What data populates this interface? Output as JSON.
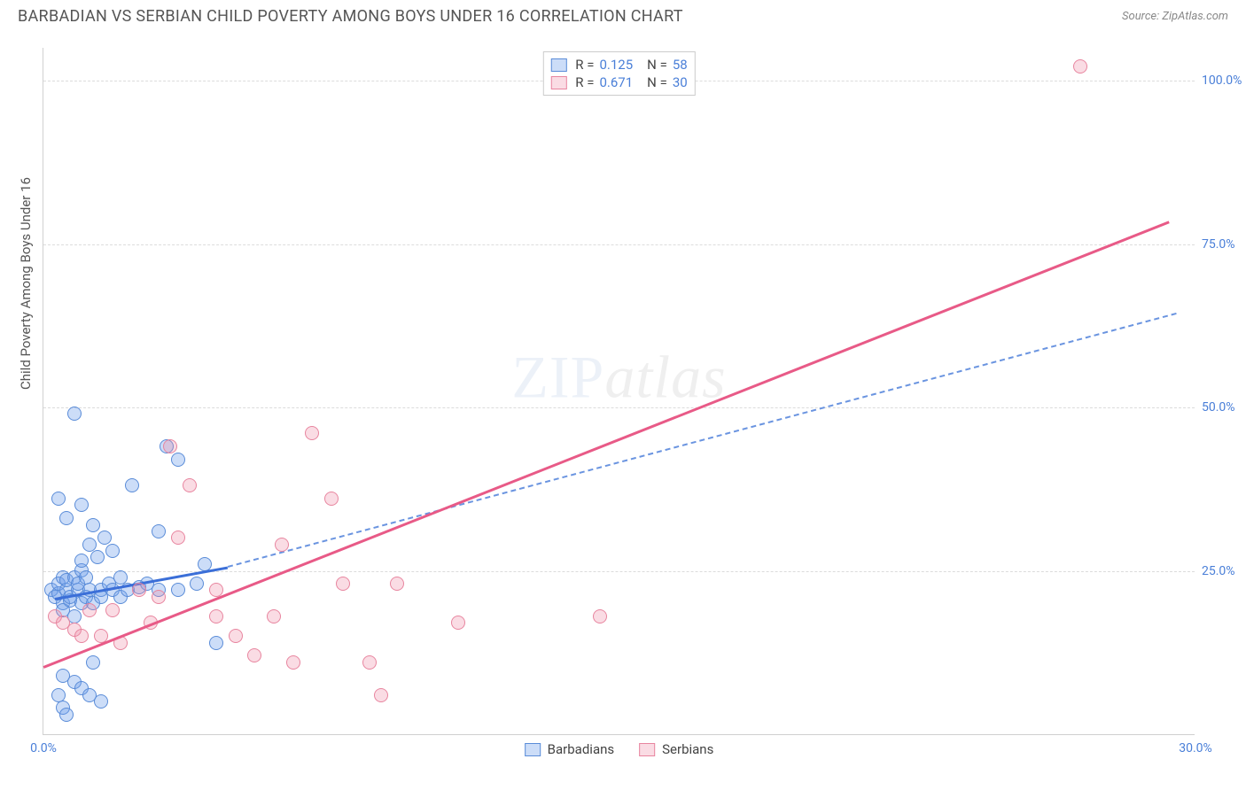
{
  "header": {
    "title": "BARBADIAN VS SERBIAN CHILD POVERTY AMONG BOYS UNDER 16 CORRELATION CHART",
    "source": "Source: ZipAtlas.com"
  },
  "axes": {
    "y_label": "Child Poverty Among Boys Under 16",
    "x_min": 0.0,
    "x_max": 30.0,
    "y_min": 0.0,
    "y_max": 105.0,
    "y_ticks": [
      25.0,
      50.0,
      75.0,
      100.0
    ],
    "y_tick_labels": [
      "25.0%",
      "50.0%",
      "75.0%",
      "100.0%"
    ],
    "x_ticks": [
      0.0,
      30.0
    ],
    "x_tick_labels": [
      "0.0%",
      "30.0%"
    ]
  },
  "series": [
    {
      "name": "Barbadians",
      "legend_r": "0.125",
      "legend_n": "58",
      "point_fill": "rgba(109,158,235,0.35)",
      "point_stroke": "#5a8cd8",
      "line_color": "#3b6fd8",
      "line_style": "solid",
      "dash_color": "#6a94e0",
      "trend": {
        "x1": 0.3,
        "y1": 21.0,
        "x2": 4.8,
        "y2": 25.8
      },
      "trend_ext": {
        "x1": 4.8,
        "y1": 25.8,
        "x2": 29.5,
        "y2": 64.5
      },
      "points": [
        [
          0.2,
          22
        ],
        [
          0.3,
          21
        ],
        [
          0.4,
          21.5
        ],
        [
          0.4,
          23
        ],
        [
          0.5,
          20
        ],
        [
          0.5,
          24
        ],
        [
          0.5,
          19
        ],
        [
          0.6,
          22
        ],
        [
          0.6,
          23.5
        ],
        [
          0.7,
          20.5
        ],
        [
          0.7,
          21
        ],
        [
          0.8,
          18
        ],
        [
          0.8,
          24
        ],
        [
          0.9,
          22
        ],
        [
          0.9,
          23
        ],
        [
          1.0,
          20
        ],
        [
          1.0,
          25
        ],
        [
          1.0,
          26.5
        ],
        [
          1.1,
          21
        ],
        [
          1.1,
          24
        ],
        [
          1.2,
          22
        ],
        [
          1.2,
          29
        ],
        [
          1.3,
          20
        ],
        [
          1.3,
          32
        ],
        [
          1.4,
          27
        ],
        [
          1.5,
          22
        ],
        [
          1.5,
          21
        ],
        [
          1.6,
          30
        ],
        [
          1.7,
          23
        ],
        [
          1.8,
          28
        ],
        [
          1.8,
          22
        ],
        [
          2.0,
          24
        ],
        [
          2.0,
          21
        ],
        [
          2.2,
          22
        ],
        [
          2.3,
          38
        ],
        [
          2.5,
          22.5
        ],
        [
          2.7,
          23
        ],
        [
          3.0,
          22
        ],
        [
          3.0,
          31
        ],
        [
          3.2,
          44
        ],
        [
          3.5,
          22
        ],
        [
          3.5,
          42
        ],
        [
          4.0,
          23
        ],
        [
          4.2,
          26
        ],
        [
          4.5,
          14
        ],
        [
          0.5,
          9
        ],
        [
          0.8,
          8
        ],
        [
          1.0,
          7
        ],
        [
          1.2,
          6
        ],
        [
          1.3,
          11
        ],
        [
          1.5,
          5
        ],
        [
          0.8,
          49
        ],
        [
          0.4,
          36
        ],
        [
          0.6,
          33
        ],
        [
          1.0,
          35
        ],
        [
          0.5,
          4
        ],
        [
          0.6,
          3
        ],
        [
          0.4,
          6
        ]
      ]
    },
    {
      "name": "Serbians",
      "legend_r": "0.671",
      "legend_n": "30",
      "point_fill": "rgba(240,140,165,0.3)",
      "point_stroke": "#e8859f",
      "line_color": "#e85a87",
      "line_style": "solid",
      "trend": {
        "x1": 0.0,
        "y1": 10.5,
        "x2": 29.3,
        "y2": 78.5
      },
      "points": [
        [
          0.3,
          18
        ],
        [
          0.5,
          17
        ],
        [
          0.8,
          16
        ],
        [
          1.0,
          15
        ],
        [
          1.2,
          19
        ],
        [
          1.5,
          15
        ],
        [
          1.8,
          19
        ],
        [
          2.0,
          14
        ],
        [
          2.5,
          22
        ],
        [
          2.8,
          17
        ],
        [
          3.0,
          21
        ],
        [
          3.3,
          44
        ],
        [
          3.5,
          30
        ],
        [
          3.8,
          38
        ],
        [
          4.5,
          22
        ],
        [
          4.5,
          18
        ],
        [
          5.0,
          15
        ],
        [
          5.5,
          12
        ],
        [
          6.0,
          18
        ],
        [
          6.2,
          29
        ],
        [
          6.5,
          11
        ],
        [
          7.0,
          46
        ],
        [
          7.5,
          36
        ],
        [
          7.8,
          23
        ],
        [
          8.5,
          11
        ],
        [
          8.8,
          6
        ],
        [
          9.2,
          23
        ],
        [
          10.8,
          17
        ],
        [
          14.5,
          18
        ],
        [
          27.0,
          102
        ]
      ]
    }
  ],
  "legend_bottom": [
    {
      "label": "Barbadians",
      "fill": "rgba(109,158,235,0.35)",
      "stroke": "#5a8cd8"
    },
    {
      "label": "Serbians",
      "fill": "rgba(240,140,165,0.3)",
      "stroke": "#e8859f"
    }
  ],
  "watermark": {
    "part1": "ZIP",
    "part2": "atlas"
  }
}
